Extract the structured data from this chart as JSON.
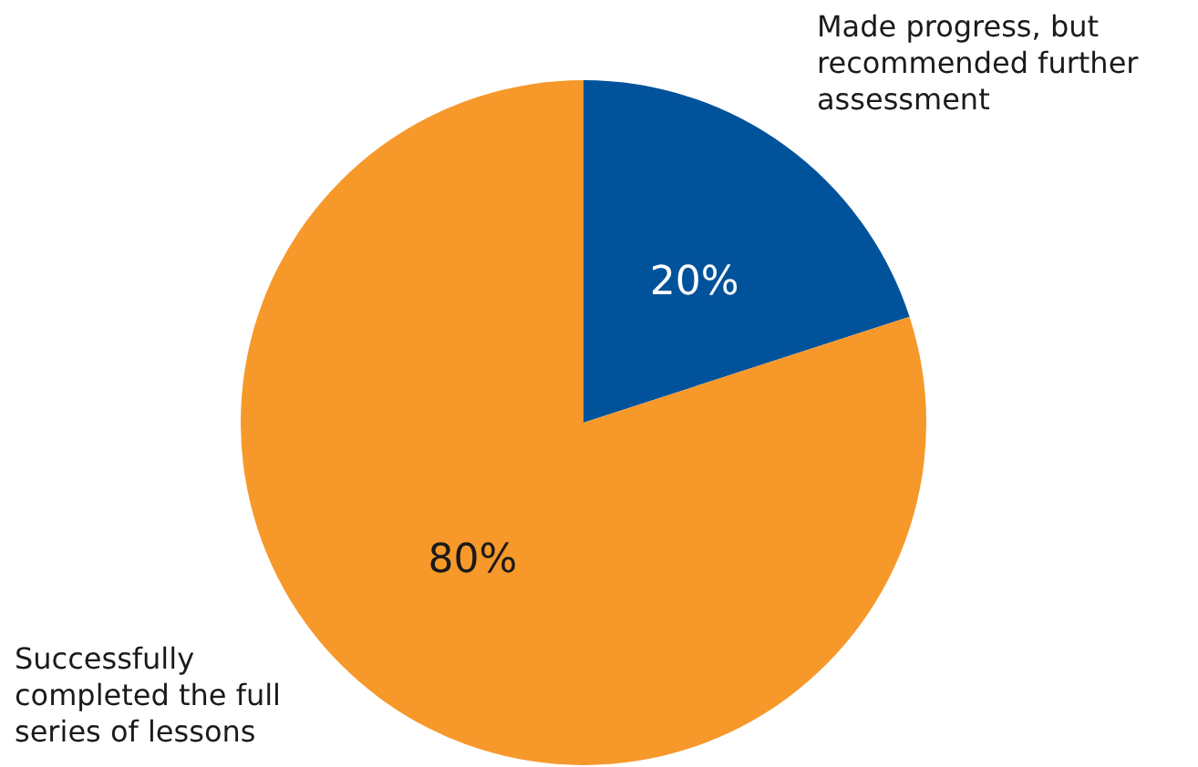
{
  "chart_data": {
    "type": "pie",
    "categories": [
      "Made progress, but recommended further assessment",
      "Successfully completed the full series of lessons"
    ],
    "values": [
      20,
      80
    ],
    "colors": [
      "#00539b",
      "#f7982a"
    ],
    "value_labels": [
      "20%",
      "80%"
    ],
    "legend": false
  }
}
